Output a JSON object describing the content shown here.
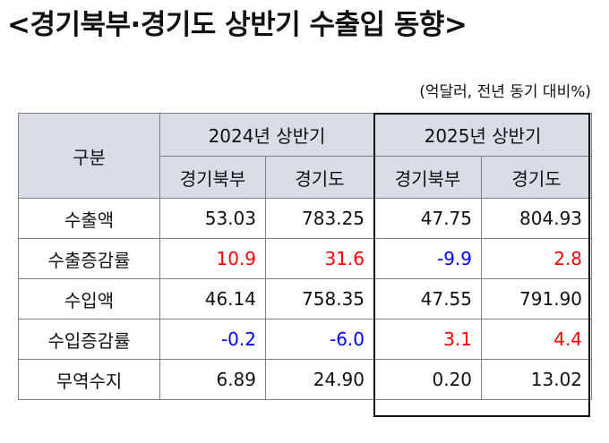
{
  "title": "<경기북부·경기도 상반기 수출입 동향>",
  "unit_note": "(억달러, 전년 동기 대비%)",
  "table": {
    "row_header": "구분",
    "periods": [
      "2024년  상반기",
      "2025년  상반기"
    ],
    "regions": [
      "경기북부",
      "경기도",
      "경기북부",
      "경기도"
    ],
    "rows": [
      {
        "label": "수출액",
        "values": [
          "53.03",
          "783.25",
          "47.75",
          "804.93"
        ]
      },
      {
        "label": "수출증감률",
        "values": [
          "10.9",
          "31.6",
          "-9.9",
          "2.8"
        ]
      },
      {
        "label": "수입액",
        "values": [
          "46.14",
          "758.35",
          "47.55",
          "791.90"
        ]
      },
      {
        "label": "수입증감률",
        "values": [
          "-0.2",
          "-6.0",
          "3.1",
          "4.4"
        ]
      },
      {
        "label": "무역수지",
        "values": [
          "6.89",
          "24.90",
          "0.20",
          "13.02"
        ]
      }
    ]
  },
  "colors": {
    "positive_rate": "#ff0000",
    "negative_rate": "#0000ff",
    "header_bg": "#d8dde8"
  }
}
